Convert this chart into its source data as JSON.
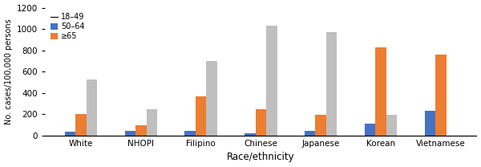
{
  "categories": [
    "White",
    "NHOPI",
    "Filipino",
    "Chinese",
    "Japanese",
    "Korean",
    "Vietnamese"
  ],
  "colors": [
    "#4472c4",
    "#ed7d31",
    "#bfbfbf"
  ],
  "values": {
    "18-49": [
      40,
      45,
      45,
      25,
      45,
      110,
      230
    ],
    "50-64": [
      205,
      100,
      370,
      250,
      195,
      825,
      760
    ],
    ">=65": [
      530,
      250,
      700,
      1030,
      970,
      195,
      0
    ]
  },
  "ylim": [
    0,
    1200
  ],
  "yticks": [
    0,
    200,
    400,
    600,
    800,
    1000,
    1200
  ],
  "ylabel": "No. cases/100,000 persons",
  "xlabel": "Race/ethnicity",
  "legend_labels": [
    "18–49",
    "50–64",
    "≥65"
  ],
  "bar_width": 0.18,
  "figsize": [
    6.0,
    2.08
  ],
  "dpi": 100
}
